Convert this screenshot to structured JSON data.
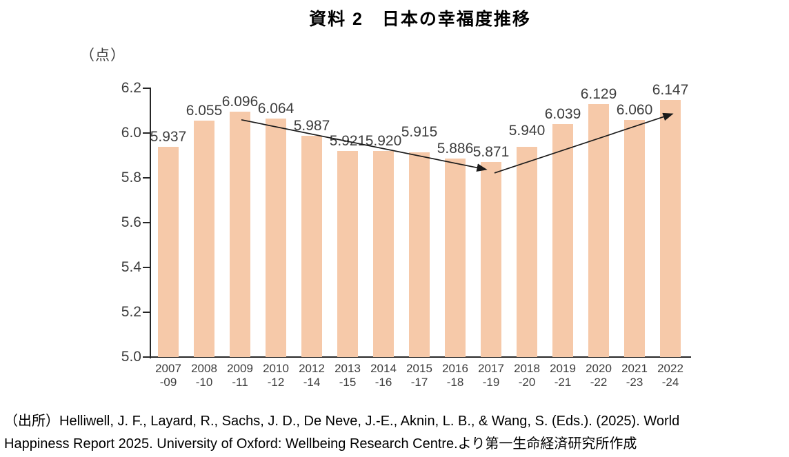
{
  "title": "資料 2　日本の幸福度推移",
  "chart_data": {
    "type": "bar",
    "title": "資料 2　日本の幸福度推移",
    "unit_label": "（点）",
    "categories": [
      "2007-09",
      "2008-10",
      "2009-11",
      "2010-12",
      "2012-14",
      "2013-15",
      "2014-16",
      "2015-17",
      "2016-18",
      "2017-19",
      "2018-20",
      "2019-21",
      "2020-22",
      "2021-23",
      "2022-24"
    ],
    "category_labels": [
      [
        "2007",
        "-09"
      ],
      [
        "2008",
        "-10"
      ],
      [
        "2009",
        "-11"
      ],
      [
        "2010",
        "-12"
      ],
      [
        "2012",
        "-14"
      ],
      [
        "2013",
        "-15"
      ],
      [
        "2014",
        "-16"
      ],
      [
        "2015",
        "-17"
      ],
      [
        "2016",
        "-18"
      ],
      [
        "2017",
        "-19"
      ],
      [
        "2018",
        "-20"
      ],
      [
        "2019",
        "-21"
      ],
      [
        "2020",
        "-22"
      ],
      [
        "2021",
        "-23"
      ],
      [
        "2022",
        "-24"
      ]
    ],
    "values": [
      5.937,
      6.055,
      6.096,
      6.064,
      5.987,
      5.921,
      5.92,
      5.915,
      5.886,
      5.871,
      5.94,
      6.039,
      6.129,
      6.06,
      6.147
    ],
    "value_labels": [
      "5.937",
      "6.055",
      "6.096",
      "6.064",
      "5.987",
      "5.921",
      "5.920",
      "5.915",
      "5.886",
      "5.871",
      "5.940",
      "6.039",
      "6.129",
      "6.060",
      "6.147"
    ],
    "ylim": [
      5.0,
      6.2
    ],
    "ytick_step": 0.2,
    "yticks": [
      "6.2",
      "6.0",
      "5.8",
      "5.6",
      "5.4",
      "5.2",
      "5.0"
    ],
    "grid": false,
    "legend": "none",
    "bar_color": "#F6C9A9",
    "arrow_color": "#1a1a1a",
    "annotations": [
      {
        "name": "downtrend-arrow",
        "from_category": "2009-11",
        "to_category": "2017-19"
      },
      {
        "name": "uptrend-arrow",
        "from_category": "2017-19",
        "to_category": "2022-24"
      }
    ]
  },
  "source": {
    "line1": "（出所）Helliwell, J. F., Layard, R., Sachs, J. D., De Neve, J.-E., Aknin, L. B., & Wang, S. (Eds.). (2025). World",
    "line2": "Happiness Report 2025. University of Oxford: Wellbeing Research Centre.より第一生命経済研究所作成"
  }
}
